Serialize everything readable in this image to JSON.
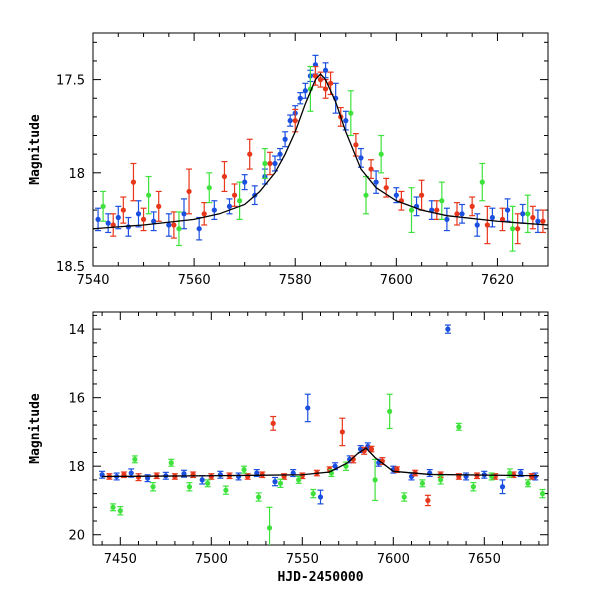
{
  "chart_data": [
    {
      "type": "scatter",
      "title": "",
      "xlabel": "",
      "ylabel": "Magnitude",
      "xlim": [
        7540,
        7630
      ],
      "ylim": [
        18.5,
        17.25
      ],
      "y_inverted": true,
      "x_ticks": [
        7540,
        7560,
        7580,
        7600,
        7620
      ],
      "y_ticks": [
        17.5,
        18,
        18.5
      ],
      "y_tick_labels": [
        "17.5",
        "18",
        "18.5"
      ],
      "grid": false,
      "legend": "none",
      "model_curve": {
        "color": "#000000",
        "x": [
          7540,
          7550,
          7560,
          7565,
          7570,
          7573,
          7576,
          7578,
          7580,
          7582,
          7584,
          7585,
          7586,
          7588,
          7590,
          7593,
          7596,
          7600,
          7605,
          7610,
          7620,
          7630
        ],
        "y": [
          18.3,
          18.28,
          18.25,
          18.22,
          18.17,
          18.1,
          18.0,
          17.9,
          17.78,
          17.63,
          17.5,
          17.47,
          17.5,
          17.62,
          17.78,
          17.98,
          18.08,
          18.15,
          18.2,
          18.23,
          18.26,
          18.28
        ]
      },
      "series": [
        {
          "color": "#1a4fe0",
          "x": [
            7541,
            7543,
            7545,
            7547,
            7549,
            7552,
            7555,
            7558,
            7561,
            7564,
            7567,
            7570,
            7572,
            7574,
            7576,
            7577,
            7578,
            7579,
            7580,
            7581,
            7582,
            7583,
            7584,
            7586,
            7588,
            7590,
            7593,
            7596,
            7600,
            7604,
            7607,
            7610,
            7613,
            7616,
            7619,
            7622,
            7625,
            7628
          ],
          "y": [
            18.25,
            18.27,
            18.24,
            18.29,
            18.22,
            18.26,
            18.28,
            18.22,
            18.3,
            18.2,
            18.18,
            18.05,
            18.12,
            18.02,
            17.95,
            17.9,
            17.82,
            17.72,
            17.68,
            17.6,
            17.56,
            17.48,
            17.42,
            17.45,
            17.6,
            17.72,
            17.92,
            18.05,
            18.12,
            18.18,
            18.2,
            18.25,
            18.22,
            18.28,
            18.24,
            18.2,
            18.22,
            18.26
          ],
          "yerr": [
            0.06,
            0.05,
            0.06,
            0.05,
            0.07,
            0.05,
            0.06,
            0.08,
            0.06,
            0.05,
            0.04,
            0.04,
            0.05,
            0.04,
            0.04,
            0.03,
            0.04,
            0.03,
            0.04,
            0.03,
            0.04,
            0.03,
            0.05,
            0.04,
            0.08,
            0.05,
            0.05,
            0.06,
            0.04,
            0.05,
            0.05,
            0.06,
            0.05,
            0.06,
            0.05,
            0.06,
            0.05,
            0.06
          ]
        },
        {
          "color": "#e8361a",
          "x": [
            7544,
            7546,
            7548,
            7550,
            7553,
            7556,
            7559,
            7562,
            7566,
            7568,
            7571,
            7575,
            7580,
            7584,
            7585,
            7586,
            7587,
            7589,
            7592,
            7595,
            7598,
            7601,
            7605,
            7608,
            7612,
            7615,
            7618,
            7621,
            7624,
            7627,
            7629
          ],
          "y": [
            18.28,
            18.2,
            18.05,
            18.25,
            18.18,
            18.28,
            18.1,
            18.22,
            18.02,
            18.12,
            17.9,
            17.95,
            17.72,
            17.48,
            17.5,
            17.55,
            17.52,
            17.7,
            17.85,
            17.98,
            18.08,
            18.15,
            18.12,
            18.2,
            18.22,
            18.18,
            18.28,
            18.25,
            18.3,
            18.24,
            18.26
          ],
          "yerr": [
            0.06,
            0.07,
            0.1,
            0.06,
            0.08,
            0.07,
            0.12,
            0.06,
            0.08,
            0.06,
            0.08,
            0.06,
            0.06,
            0.05,
            0.04,
            0.05,
            0.06,
            0.05,
            0.06,
            0.05,
            0.05,
            0.05,
            0.08,
            0.05,
            0.06,
            0.05,
            0.1,
            0.06,
            0.08,
            0.06,
            0.06
          ]
        },
        {
          "color": "#3fe23c",
          "x": [
            7542,
            7551,
            7557,
            7563,
            7569,
            7574,
            7583,
            7591,
            7594,
            7597,
            7603,
            7609,
            7617,
            7623,
            7626
          ],
          "y": [
            18.18,
            18.12,
            18.3,
            18.08,
            18.15,
            17.95,
            17.55,
            17.68,
            18.12,
            17.9,
            18.2,
            18.15,
            18.05,
            18.3,
            18.22
          ],
          "yerr": [
            0.08,
            0.1,
            0.09,
            0.08,
            0.1,
            0.08,
            0.12,
            0.12,
            0.1,
            0.1,
            0.12,
            0.1,
            0.1,
            0.12,
            0.1
          ]
        }
      ]
    },
    {
      "type": "scatter",
      "title": "",
      "xlabel": "HJD-2450000",
      "ylabel": "Magnitude",
      "xlim": [
        7435,
        7685
      ],
      "ylim": [
        20.3,
        13.5
      ],
      "y_inverted": true,
      "x_ticks": [
        7450,
        7500,
        7550,
        7600,
        7650
      ],
      "y_ticks": [
        14,
        16,
        18,
        20
      ],
      "y_tick_labels": [
        "14",
        "16",
        "18",
        "20"
      ],
      "grid": false,
      "legend": "none",
      "model_curve": {
        "color": "#000000",
        "x": [
          7440,
          7500,
          7550,
          7565,
          7575,
          7580,
          7585,
          7590,
          7600,
          7620,
          7680
        ],
        "y": [
          18.3,
          18.28,
          18.25,
          18.17,
          17.9,
          17.65,
          17.47,
          17.75,
          18.15,
          18.24,
          18.28
        ]
      },
      "series": [
        {
          "color": "#1a4fe0",
          "x": [
            7440,
            7448,
            7456,
            7465,
            7475,
            7485,
            7495,
            7505,
            7515,
            7525,
            7535,
            7545,
            7553,
            7560,
            7568,
            7576,
            7582,
            7586,
            7592,
            7600,
            7610,
            7620,
            7630,
            7640,
            7650,
            7660,
            7670,
            7678
          ],
          "y": [
            18.25,
            18.3,
            18.2,
            18.35,
            18.28,
            18.22,
            18.4,
            18.25,
            18.3,
            18.2,
            18.45,
            18.2,
            16.3,
            18.9,
            18.0,
            17.8,
            17.5,
            17.42,
            17.9,
            18.1,
            18.3,
            18.2,
            14.0,
            18.3,
            18.25,
            18.6,
            18.2,
            18.3
          ],
          "yerr": [
            0.1,
            0.1,
            0.12,
            0.1,
            0.1,
            0.1,
            0.12,
            0.1,
            0.1,
            0.1,
            0.12,
            0.1,
            0.4,
            0.2,
            0.1,
            0.1,
            0.1,
            0.1,
            0.1,
            0.1,
            0.1,
            0.1,
            0.12,
            0.1,
            0.1,
            0.2,
            0.1,
            0.1
          ]
        },
        {
          "color": "#e8361a",
          "x": [
            7444,
            7452,
            7460,
            7470,
            7480,
            7490,
            7500,
            7510,
            7520,
            7528,
            7534,
            7540,
            7550,
            7558,
            7565,
            7572,
            7578,
            7584,
            7588,
            7594,
            7602,
            7612,
            7619,
            7626,
            7636,
            7646,
            7656,
            7666,
            7676
          ],
          "y": [
            18.3,
            18.25,
            18.32,
            18.28,
            18.3,
            18.25,
            18.3,
            18.28,
            18.3,
            18.25,
            16.75,
            18.3,
            18.28,
            18.2,
            18.1,
            17.0,
            17.8,
            17.55,
            17.5,
            17.85,
            18.1,
            18.2,
            19.0,
            18.25,
            18.3,
            18.28,
            18.3,
            18.25,
            18.3
          ],
          "yerr": [
            0.08,
            0.08,
            0.1,
            0.08,
            0.08,
            0.08,
            0.08,
            0.08,
            0.08,
            0.08,
            0.2,
            0.08,
            0.08,
            0.08,
            0.08,
            0.4,
            0.1,
            0.1,
            0.08,
            0.1,
            0.08,
            0.08,
            0.15,
            0.08,
            0.08,
            0.08,
            0.08,
            0.08,
            0.08
          ]
        },
        {
          "color": "#3fe23c",
          "x": [
            7446,
            7450,
            7458,
            7468,
            7478,
            7488,
            7498,
            7508,
            7518,
            7526,
            7532,
            7538,
            7548,
            7556,
            7566,
            7574,
            7590,
            7598,
            7606,
            7616,
            7626,
            7636,
            7644,
            7654,
            7664,
            7674,
            7682
          ],
          "y": [
            19.2,
            19.3,
            17.8,
            18.6,
            17.9,
            18.6,
            18.5,
            18.7,
            18.1,
            18.9,
            19.8,
            18.5,
            18.4,
            18.8,
            18.2,
            18.0,
            18.4,
            16.4,
            18.9,
            18.5,
            18.4,
            16.85,
            18.6,
            18.3,
            18.2,
            18.5,
            18.8
          ],
          "yerr": [
            0.1,
            0.12,
            0.1,
            0.12,
            0.1,
            0.12,
            0.1,
            0.12,
            0.1,
            0.12,
            0.6,
            0.12,
            0.1,
            0.12,
            0.1,
            0.12,
            0.6,
            0.5,
            0.12,
            0.1,
            0.12,
            0.1,
            0.12,
            0.1,
            0.12,
            0.1,
            0.12
          ]
        }
      ]
    }
  ]
}
